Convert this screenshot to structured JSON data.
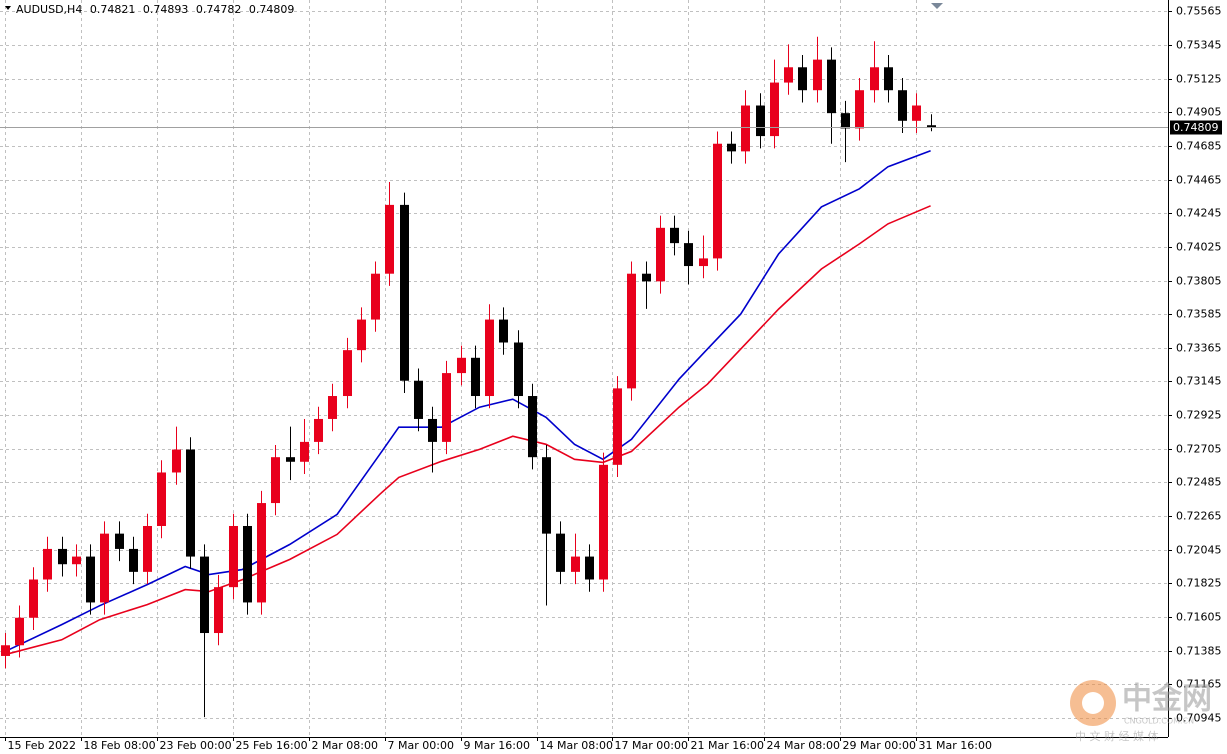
{
  "chart_data": {
    "type": "candlestick",
    "title": "AUDUSD,H4",
    "up_color": "#e8001c",
    "down_color": "#000000",
    "grid": true,
    "xlim": [
      -1,
      245
    ],
    "ylim": [
      0.7082,
      0.7564
    ],
    "yticks": [
      0.75565,
      0.75345,
      0.75125,
      0.74905,
      0.74685,
      0.74465,
      0.74245,
      0.74025,
      0.73805,
      0.73585,
      0.73365,
      0.73145,
      0.72925,
      0.72705,
      0.72485,
      0.72265,
      0.72045,
      0.71825,
      0.71605,
      0.71385,
      0.71165,
      0.70945
    ],
    "xticks": [
      {
        "value": 0,
        "label": "15 Feb 2022"
      },
      {
        "value": 16,
        "label": "18 Feb 08:00"
      },
      {
        "value": 32,
        "label": "23 Feb 00:00"
      },
      {
        "value": 48,
        "label": "25 Feb 16:00"
      },
      {
        "value": 64,
        "label": "2 Mar 08:00"
      },
      {
        "value": 80,
        "label": "7 Mar 00:00"
      },
      {
        "value": 96,
        "label": "9 Mar 16:00"
      },
      {
        "value": 112,
        "label": "14 Mar 08:00"
      },
      {
        "value": 128,
        "label": "17 Mar 00:00"
      },
      {
        "value": 144,
        "label": "21 Mar 16:00"
      },
      {
        "value": 160,
        "label": "24 Mar 08:00"
      },
      {
        "value": 176,
        "label": "29 Mar 00:00"
      },
      {
        "value": 192,
        "label": "31 Mar 16:00"
      }
    ],
    "x": [
      0,
      3,
      6,
      9,
      12,
      15,
      18,
      21,
      24,
      27,
      30,
      33,
      36,
      39,
      42,
      45,
      48,
      51,
      54,
      57,
      60,
      63,
      66,
      69,
      72,
      75,
      78,
      81,
      84,
      87,
      90,
      93,
      96,
      99,
      102,
      105,
      108,
      111,
      114,
      117,
      120,
      123,
      126,
      129,
      132,
      135,
      138,
      141,
      144,
      147,
      150,
      153,
      156,
      159,
      162,
      165,
      168,
      171,
      174,
      177,
      180,
      183,
      186,
      189,
      192,
      195
    ],
    "open": [
      0.7135,
      0.7142,
      0.716,
      0.7185,
      0.7205,
      0.7195,
      0.72,
      0.717,
      0.7215,
      0.7205,
      0.719,
      0.722,
      0.7255,
      0.727,
      0.72,
      0.715,
      0.718,
      0.722,
      0.717,
      0.7235,
      0.7265,
      0.7262,
      0.7275,
      0.729,
      0.7305,
      0.7335,
      0.7355,
      0.7385,
      0.743,
      0.7315,
      0.729,
      0.7275,
      0.732,
      0.733,
      0.7305,
      0.7355,
      0.734,
      0.7305,
      0.7265,
      0.7215,
      0.719,
      0.72,
      0.7185,
      0.726,
      0.731,
      0.7385,
      0.738,
      0.7415,
      0.7405,
      0.739,
      0.7395,
      0.747,
      0.7465,
      0.7495,
      0.7475,
      0.751,
      0.752,
      0.7505,
      0.7525,
      0.749,
      0.748,
      0.7505,
      0.752,
      0.7505,
      0.7485,
      0.74821
    ],
    "high": [
      0.715,
      0.7168,
      0.7193,
      0.7213,
      0.7213,
      0.7208,
      0.7208,
      0.7223,
      0.7223,
      0.7213,
      0.7228,
      0.7263,
      0.7285,
      0.7278,
      0.7208,
      0.7188,
      0.7228,
      0.7228,
      0.7243,
      0.7273,
      0.7285,
      0.729,
      0.7298,
      0.7313,
      0.7343,
      0.7363,
      0.7393,
      0.7445,
      0.7438,
      0.7323,
      0.7298,
      0.7328,
      0.7338,
      0.7338,
      0.7365,
      0.7363,
      0.7348,
      0.7313,
      0.7273,
      0.7223,
      0.7215,
      0.7208,
      0.7268,
      0.7318,
      0.7393,
      0.7393,
      0.7423,
      0.7423,
      0.7413,
      0.741,
      0.7478,
      0.7478,
      0.7505,
      0.7503,
      0.7525,
      0.7535,
      0.7528,
      0.754,
      0.7533,
      0.7498,
      0.7513,
      0.7537,
      0.7528,
      0.7513,
      0.7503,
      0.74893
    ],
    "low": [
      0.7127,
      0.7134,
      0.7152,
      0.7177,
      0.7187,
      0.7187,
      0.7162,
      0.7162,
      0.7197,
      0.7182,
      0.7182,
      0.7212,
      0.7247,
      0.7192,
      0.7095,
      0.7142,
      0.7172,
      0.7162,
      0.7162,
      0.7227,
      0.725,
      0.7254,
      0.7267,
      0.7282,
      0.7297,
      0.7327,
      0.7347,
      0.7377,
      0.7307,
      0.7282,
      0.7255,
      0.7267,
      0.7312,
      0.7297,
      0.7297,
      0.7332,
      0.7297,
      0.7257,
      0.7168,
      0.7182,
      0.7182,
      0.7177,
      0.7177,
      0.7252,
      0.7302,
      0.7362,
      0.7372,
      0.7397,
      0.7378,
      0.7382,
      0.7387,
      0.7457,
      0.7457,
      0.7467,
      0.7467,
      0.7502,
      0.7497,
      0.7497,
      0.747,
      0.7458,
      0.7472,
      0.7497,
      0.7497,
      0.7477,
      0.7477,
      0.74782
    ],
    "close": [
      0.7142,
      0.716,
      0.7185,
      0.7205,
      0.7195,
      0.72,
      0.717,
      0.7215,
      0.7205,
      0.719,
      0.722,
      0.7255,
      0.727,
      0.72,
      0.715,
      0.718,
      0.722,
      0.717,
      0.7235,
      0.7265,
      0.7262,
      0.7275,
      0.729,
      0.7305,
      0.7335,
      0.7355,
      0.7385,
      0.743,
      0.7315,
      0.729,
      0.7275,
      0.732,
      0.733,
      0.7305,
      0.7355,
      0.734,
      0.7305,
      0.7265,
      0.7215,
      0.719,
      0.72,
      0.7185,
      0.726,
      0.731,
      0.7385,
      0.738,
      0.7415,
      0.7405,
      0.739,
      0.7395,
      0.747,
      0.7465,
      0.7495,
      0.7475,
      0.751,
      0.752,
      0.7505,
      0.7525,
      0.749,
      0.748,
      0.7505,
      0.752,
      0.7505,
      0.7485,
      0.7495,
      0.74809
    ],
    "lines": [
      {
        "color": "#0000cc",
        "x": [
          0,
          12,
          20,
          30,
          38,
          43,
          50,
          60,
          70,
          79,
          83,
          92,
          100,
          107,
          114,
          120,
          126,
          132,
          142,
          148,
          155,
          163,
          172,
          180,
          186,
          195
        ],
        "values": [
          0.71378,
          0.71555,
          0.71679,
          0.71817,
          0.71935,
          0.71883,
          0.71915,
          0.72079,
          0.72276,
          0.72669,
          0.72846,
          0.72846,
          0.72977,
          0.73029,
          0.72911,
          0.72734,
          0.72636,
          0.72767,
          0.7316,
          0.73357,
          0.73586,
          0.7398,
          0.74287,
          0.74405,
          0.74549,
          0.74654
        ]
      },
      {
        "color": "#e8001c",
        "x": [
          0,
          12,
          20,
          30,
          38,
          43,
          50,
          60,
          70,
          79,
          83,
          92,
          100,
          107,
          114,
          120,
          126,
          132,
          142,
          148,
          155,
          163,
          172,
          180,
          186,
          195
        ],
        "values": [
          0.71358,
          0.71456,
          0.71587,
          0.71686,
          0.71784,
          0.71771,
          0.71849,
          0.71981,
          0.72145,
          0.72407,
          0.72518,
          0.72623,
          0.72701,
          0.72787,
          0.72734,
          0.72636,
          0.72616,
          0.72688,
          0.72977,
          0.73127,
          0.73357,
          0.73619,
          0.73881,
          0.74045,
          0.74176,
          0.74294
        ]
      }
    ],
    "watermark": [
      "中金网",
      "CNGOLD.COM.CN",
      "中 文 财 经 媒 体"
    ]
  }
}
